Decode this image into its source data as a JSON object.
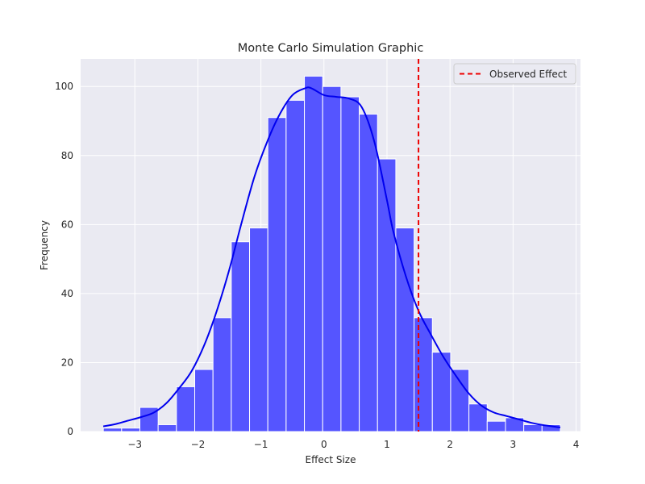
{
  "chart_data": {
    "type": "bar",
    "title": "Monte Carlo Simulation Graphic",
    "xlabel": "Effect Size",
    "ylabel": "Frequency",
    "xlim": [
      -3.86,
      4.07
    ],
    "ylim": [
      0,
      108
    ],
    "xticks": [
      -3,
      -2,
      -1,
      0,
      1,
      2,
      3,
      4
    ],
    "xtick_labels": [
      "−3",
      "−2",
      "−1",
      "0",
      "1",
      "2",
      "3",
      "4"
    ],
    "yticks": [
      0,
      20,
      40,
      60,
      80,
      100
    ],
    "ytick_labels": [
      "0",
      "20",
      "40",
      "60",
      "80",
      "100"
    ],
    "grid": true,
    "legend_position": "top-right",
    "bins": [
      {
        "x0": -3.5,
        "x1": -3.21,
        "count": 1
      },
      {
        "x0": -3.21,
        "x1": -2.92,
        "count": 1
      },
      {
        "x0": -2.92,
        "x1": -2.63,
        "count": 7
      },
      {
        "x0": -2.63,
        "x1": -2.34,
        "count": 2
      },
      {
        "x0": -2.34,
        "x1": -2.05,
        "count": 13
      },
      {
        "x0": -2.05,
        "x1": -1.76,
        "count": 18
      },
      {
        "x0": -1.76,
        "x1": -1.47,
        "count": 33
      },
      {
        "x0": -1.47,
        "x1": -1.18,
        "count": 55
      },
      {
        "x0": -1.18,
        "x1": -0.89,
        "count": 59
      },
      {
        "x0": -0.89,
        "x1": -0.6,
        "count": 91
      },
      {
        "x0": -0.6,
        "x1": -0.31,
        "count": 96
      },
      {
        "x0": -0.31,
        "x1": -0.02,
        "count": 103
      },
      {
        "x0": -0.02,
        "x1": 0.27,
        "count": 100
      },
      {
        "x0": 0.27,
        "x1": 0.56,
        "count": 97
      },
      {
        "x0": 0.56,
        "x1": 0.85,
        "count": 92
      },
      {
        "x0": 0.85,
        "x1": 1.14,
        "count": 79
      },
      {
        "x0": 1.14,
        "x1": 1.43,
        "count": 59
      },
      {
        "x0": 1.43,
        "x1": 1.72,
        "count": 33
      },
      {
        "x0": 1.72,
        "x1": 2.01,
        "count": 23
      },
      {
        "x0": 2.01,
        "x1": 2.3,
        "count": 18
      },
      {
        "x0": 2.3,
        "x1": 2.59,
        "count": 8
      },
      {
        "x0": 2.59,
        "x1": 2.88,
        "count": 3
      },
      {
        "x0": 2.88,
        "x1": 3.17,
        "count": 4
      },
      {
        "x0": 3.17,
        "x1": 3.46,
        "count": 2
      },
      {
        "x0": 3.46,
        "x1": 3.75,
        "count": 2
      }
    ],
    "kde_curve": {
      "x": [
        -3.5,
        -3.3,
        -3.1,
        -2.9,
        -2.7,
        -2.5,
        -2.3,
        -2.1,
        -1.9,
        -1.7,
        -1.5,
        -1.3,
        -1.1,
        -0.9,
        -0.7,
        -0.5,
        -0.3,
        -0.2,
        0.0,
        0.2,
        0.4,
        0.6,
        0.8,
        1.0,
        1.1,
        1.3,
        1.5,
        1.7,
        1.9,
        2.1,
        2.3,
        2.5,
        2.7,
        2.9,
        3.1,
        3.3,
        3.5,
        3.75
      ],
      "y": [
        1.5,
        2.2,
        3.2,
        4.2,
        5.5,
        8.2,
        12.5,
        17.5,
        25,
        35,
        47,
        61,
        74,
        84,
        92,
        97.5,
        99.5,
        99.5,
        97.5,
        97.0,
        96.5,
        94,
        84,
        67,
        58,
        45,
        35,
        28,
        21.5,
        16,
        11,
        7.5,
        5.5,
        4.5,
        3.5,
        2.5,
        1.8,
        1.2
      ]
    },
    "observed_effect": {
      "name": "Observed Effect",
      "x": 1.5
    },
    "colors": {
      "bar_fill": "#5555ff",
      "bar_edge": "#ffffff",
      "kde_line": "#0000ee",
      "observed_line": "#ee0000",
      "plot_background": "#eaeaf2",
      "grid": "#ffffff"
    }
  }
}
